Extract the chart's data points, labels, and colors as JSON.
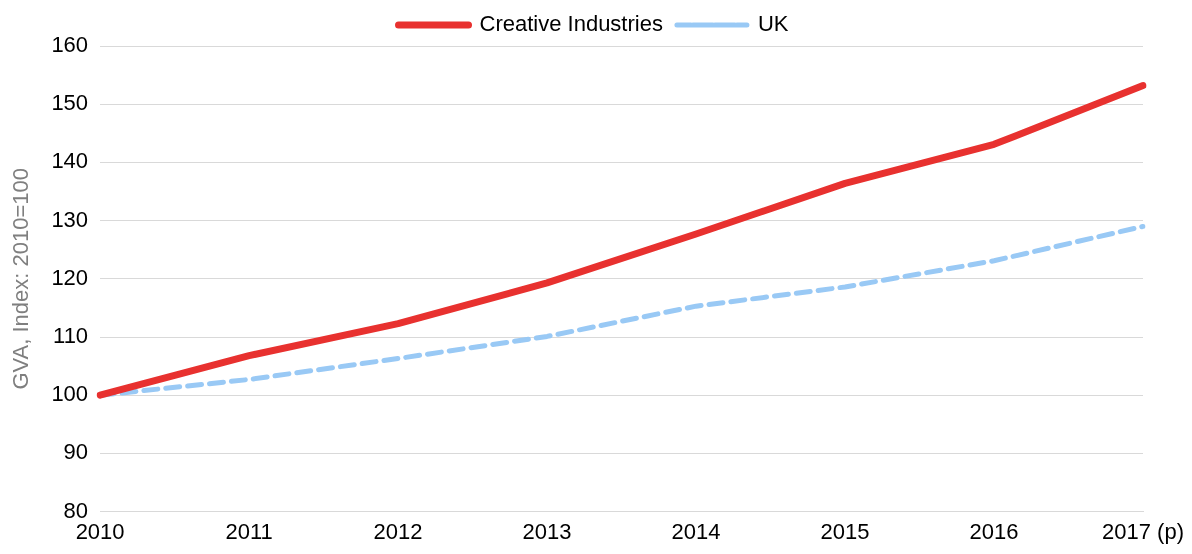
{
  "chart_data": {
    "type": "line",
    "ylabel": "GVA, Index: 2010=100",
    "categories": [
      "2010",
      "2011",
      "2012",
      "2013",
      "2014",
      "2015",
      "2016",
      "2017 (p)"
    ],
    "series": [
      {
        "name": "Creative Industries",
        "color": "#e8312f",
        "line_style": "solid",
        "values": [
          100,
          106.8,
          112.3,
          119.3,
          127.7,
          136.4,
          143.1,
          153.2
        ]
      },
      {
        "name": "UK",
        "color": "#99c9f5",
        "line_style": "dashed",
        "values": [
          100,
          102.7,
          106.3,
          110.1,
          115.3,
          118.6,
          123.1,
          129
        ]
      }
    ],
    "ylim": [
      80,
      160
    ],
    "yticks": [
      80,
      90,
      100,
      110,
      120,
      130,
      140,
      150,
      160
    ],
    "grid": "y",
    "legend": "top",
    "marker": "none"
  }
}
